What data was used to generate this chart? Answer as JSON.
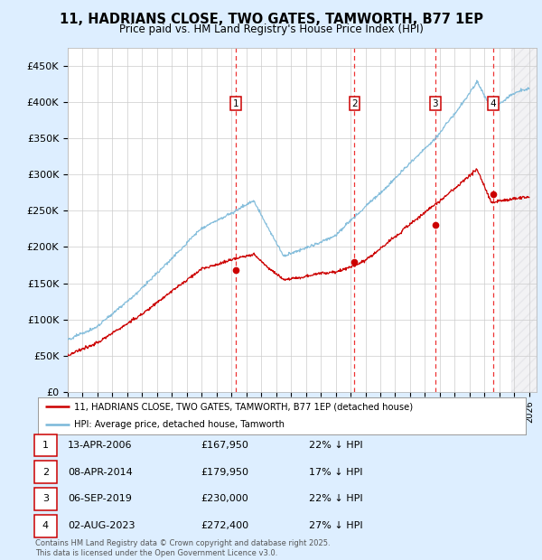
{
  "title": "11, HADRIANS CLOSE, TWO GATES, TAMWORTH, B77 1EP",
  "subtitle": "Price paid vs. HM Land Registry's House Price Index (HPI)",
  "ylim": [
    0,
    475000
  ],
  "yticks": [
    0,
    50000,
    100000,
    150000,
    200000,
    250000,
    300000,
    350000,
    400000,
    450000
  ],
  "ytick_labels": [
    "£0",
    "£50K",
    "£100K",
    "£150K",
    "£200K",
    "£250K",
    "£300K",
    "£350K",
    "£400K",
    "£450K"
  ],
  "xlim_start": 1995.0,
  "xlim_end": 2026.5,
  "sale_dates": [
    2006.28,
    2014.27,
    2019.68,
    2023.58
  ],
  "sale_prices": [
    167950,
    179950,
    230000,
    272400
  ],
  "sale_labels": [
    "1",
    "2",
    "3",
    "4"
  ],
  "sale_label_nums": [
    1,
    2,
    3,
    4
  ],
  "sale_dates_str": [
    "13-APR-2006",
    "08-APR-2014",
    "06-SEP-2019",
    "02-AUG-2023"
  ],
  "sale_prices_str": [
    "£167,950",
    "£179,950",
    "£230,000",
    "£272,400"
  ],
  "sale_hpi_pct": [
    "22% ↓ HPI",
    "17% ↓ HPI",
    "22% ↓ HPI",
    "27% ↓ HPI"
  ],
  "hpi_color": "#7ab8d9",
  "price_color": "#cc0000",
  "grid_color": "#cccccc",
  "background_color": "#ddeeff",
  "plot_bg": "#ffffff",
  "dashed_color": "#ee3333",
  "legend_label_red": "11, HADRIANS CLOSE, TWO GATES, TAMWORTH, B77 1EP (detached house)",
  "legend_label_blue": "HPI: Average price, detached house, Tamworth",
  "footer": "Contains HM Land Registry data © Crown copyright and database right 2025.\nThis data is licensed under the Open Government Licence v3.0.",
  "hpi_noise_std": 2500,
  "price_noise_std": 2500,
  "random_seed": 12
}
